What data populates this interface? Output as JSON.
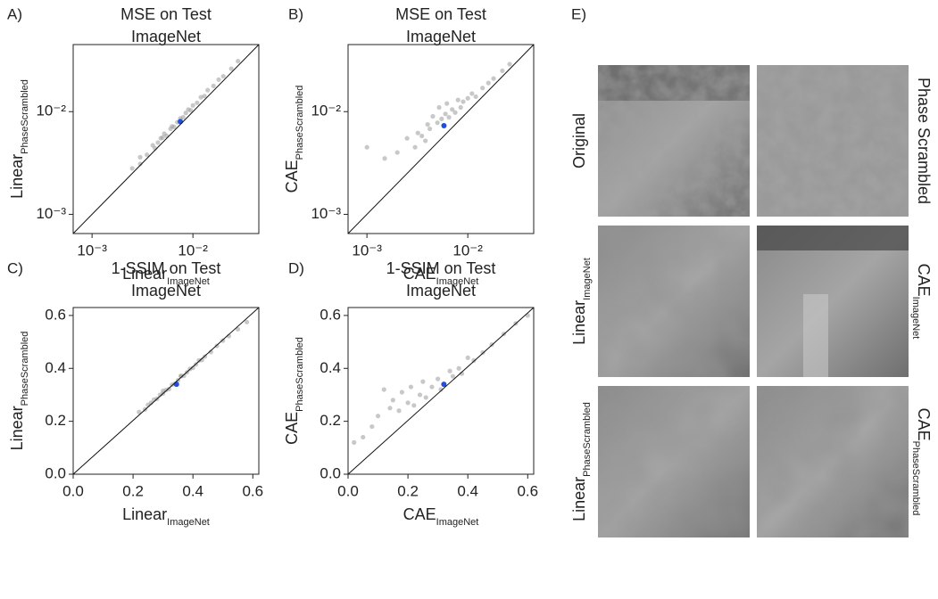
{
  "chart_data": [
    {
      "type": "scatter",
      "label": "A)",
      "title": [
        "MSE on Test",
        "ImageNet"
      ],
      "log": true,
      "xlabel": {
        "main": "Linear",
        "sub": "ImageNet"
      },
      "ylabel": {
        "main": "Linear",
        "sub": "PhaseScrambled"
      },
      "xlim": [
        0.00065,
        0.045
      ],
      "ylim": [
        0.00065,
        0.045
      ],
      "xticks": [
        {
          "value": 0.001,
          "label": "10⁻³"
        },
        {
          "value": 0.01,
          "label": "10⁻²"
        }
      ],
      "yticks": [
        {
          "value": 0.001,
          "label": "10⁻³"
        },
        {
          "value": 0.01,
          "label": "10⁻²"
        }
      ],
      "series": [
        {
          "color": "#9a9a9a",
          "x": [
            0.0025,
            0.003,
            0.0035,
            0.004,
            0.0042,
            0.0045,
            0.005,
            0.0052,
            0.0055,
            0.006,
            0.0062,
            0.0065,
            0.007,
            0.0075,
            0.008,
            0.0085,
            0.009,
            0.0095,
            0.01,
            0.011,
            0.012,
            0.013,
            0.014,
            0.016,
            0.018,
            0.02,
            0.024,
            0.028,
            0.003,
            0.0048
          ],
          "values": [
            0.0028,
            0.0031,
            0.0038,
            0.0047,
            0.0044,
            0.005,
            0.0056,
            0.0061,
            0.0058,
            0.0068,
            0.0072,
            0.0071,
            0.0079,
            0.0086,
            0.0088,
            0.0097,
            0.0105,
            0.0103,
            0.0115,
            0.0122,
            0.0138,
            0.0142,
            0.0162,
            0.0178,
            0.0205,
            0.0221,
            0.0262,
            0.031,
            0.0036,
            0.0055
          ]
        },
        {
          "color": "#1f4fe0",
          "x": [
            0.0075
          ],
          "values": [
            0.008
          ]
        }
      ]
    },
    {
      "type": "scatter",
      "label": "B)",
      "title": [
        "MSE on Test",
        "ImageNet"
      ],
      "log": true,
      "xlabel": {
        "main": "CAE",
        "sub": "ImageNet"
      },
      "ylabel": {
        "main": "CAE",
        "sub": "PhaseScrambled"
      },
      "xlim": [
        0.00065,
        0.045
      ],
      "ylim": [
        0.00065,
        0.045
      ],
      "xticks": [
        {
          "value": 0.001,
          "label": "10⁻³"
        },
        {
          "value": 0.01,
          "label": "10⁻²"
        }
      ],
      "yticks": [
        {
          "value": 0.001,
          "label": "10⁻³"
        },
        {
          "value": 0.01,
          "label": "10⁻²"
        }
      ],
      "series": [
        {
          "color": "#9a9a9a",
          "x": [
            0.001,
            0.0015,
            0.002,
            0.0025,
            0.003,
            0.0032,
            0.0035,
            0.004,
            0.0042,
            0.0045,
            0.005,
            0.0052,
            0.0055,
            0.006,
            0.0062,
            0.0065,
            0.007,
            0.0075,
            0.008,
            0.0085,
            0.009,
            0.01,
            0.011,
            0.012,
            0.014,
            0.016,
            0.018,
            0.022,
            0.026,
            0.0038
          ],
          "values": [
            0.0045,
            0.0035,
            0.004,
            0.0055,
            0.0045,
            0.0062,
            0.0058,
            0.0075,
            0.0068,
            0.009,
            0.0078,
            0.011,
            0.0085,
            0.0095,
            0.012,
            0.0088,
            0.0105,
            0.0098,
            0.013,
            0.011,
            0.0125,
            0.0135,
            0.015,
            0.014,
            0.017,
            0.019,
            0.021,
            0.025,
            0.029,
            0.0052
          ]
        },
        {
          "color": "#1f4fe0",
          "x": [
            0.0058
          ],
          "values": [
            0.0073
          ]
        }
      ]
    },
    {
      "type": "scatter",
      "label": "C)",
      "title": [
        "1-SSIM on Test",
        "ImageNet"
      ],
      "log": false,
      "xlabel": {
        "main": "Linear",
        "sub": "ImageNet"
      },
      "ylabel": {
        "main": "Linear",
        "sub": "PhaseScrambled"
      },
      "xlim": [
        0,
        0.62
      ],
      "ylim": [
        0,
        0.63
      ],
      "xticks": [
        {
          "value": 0,
          "label": "0.0"
        },
        0.2,
        0.4,
        0.6
      ],
      "yticks": [
        {
          "value": 0,
          "label": "0.0"
        },
        0.2,
        0.4,
        0.6
      ],
      "series": [
        {
          "color": "#9a9a9a",
          "x": [
            0.22,
            0.24,
            0.25,
            0.26,
            0.27,
            0.28,
            0.29,
            0.3,
            0.31,
            0.32,
            0.33,
            0.34,
            0.35,
            0.36,
            0.37,
            0.38,
            0.39,
            0.4,
            0.41,
            0.42,
            0.43,
            0.44,
            0.46,
            0.48,
            0.5,
            0.52,
            0.55,
            0.58,
            0.3,
            0.36
          ],
          "values": [
            0.235,
            0.245,
            0.262,
            0.27,
            0.282,
            0.285,
            0.3,
            0.305,
            0.318,
            0.322,
            0.338,
            0.342,
            0.355,
            0.37,
            0.372,
            0.385,
            0.398,
            0.402,
            0.415,
            0.43,
            0.432,
            0.445,
            0.462,
            0.485,
            0.505,
            0.522,
            0.548,
            0.575,
            0.315,
            0.372
          ]
        },
        {
          "color": "#1f4fe0",
          "x": [
            0.345
          ],
          "values": [
            0.34
          ]
        }
      ]
    },
    {
      "type": "scatter",
      "label": "D)",
      "title": [
        "1-SSIM on Test",
        "ImageNet"
      ],
      "log": false,
      "xlabel": {
        "main": "CAE",
        "sub": "ImageNet"
      },
      "ylabel": {
        "main": "CAE",
        "sub": "PhaseScrambled"
      },
      "xlim": [
        0,
        0.62
      ],
      "ylim": [
        0,
        0.63
      ],
      "xticks": [
        {
          "value": 0,
          "label": "0.0"
        },
        0.2,
        0.4,
        0.6
      ],
      "yticks": [
        {
          "value": 0,
          "label": "0.0"
        },
        0.2,
        0.4,
        0.6
      ],
      "series": [
        {
          "color": "#9a9a9a",
          "x": [
            0.02,
            0.05,
            0.08,
            0.1,
            0.12,
            0.14,
            0.15,
            0.17,
            0.18,
            0.2,
            0.21,
            0.22,
            0.24,
            0.25,
            0.26,
            0.28,
            0.3,
            0.31,
            0.32,
            0.34,
            0.35,
            0.37,
            0.38,
            0.4,
            0.42,
            0.45,
            0.48,
            0.52,
            0.56,
            0.6
          ],
          "values": [
            0.12,
            0.14,
            0.18,
            0.22,
            0.32,
            0.25,
            0.28,
            0.24,
            0.31,
            0.27,
            0.33,
            0.26,
            0.3,
            0.35,
            0.29,
            0.33,
            0.36,
            0.32,
            0.34,
            0.39,
            0.37,
            0.4,
            0.38,
            0.44,
            0.43,
            0.46,
            0.49,
            0.53,
            0.57,
            0.6
          ]
        },
        {
          "color": "#1f4fe0",
          "x": [
            0.32
          ],
          "values": [
            0.34
          ]
        }
      ]
    }
  ],
  "image_panel": {
    "label": "E)",
    "left_labels": [
      {
        "main": "Original",
        "sub": ""
      },
      {
        "main": "Linear",
        "sub": "ImageNet"
      },
      {
        "main": "Linear",
        "sub": "PhaseScrambled"
      }
    ],
    "right_labels": [
      {
        "main": "Phase Scrambled",
        "sub": ""
      },
      {
        "main": "CAE",
        "sub": "ImageNet"
      },
      {
        "main": "CAE",
        "sub": "PhaseScrambled"
      }
    ]
  }
}
